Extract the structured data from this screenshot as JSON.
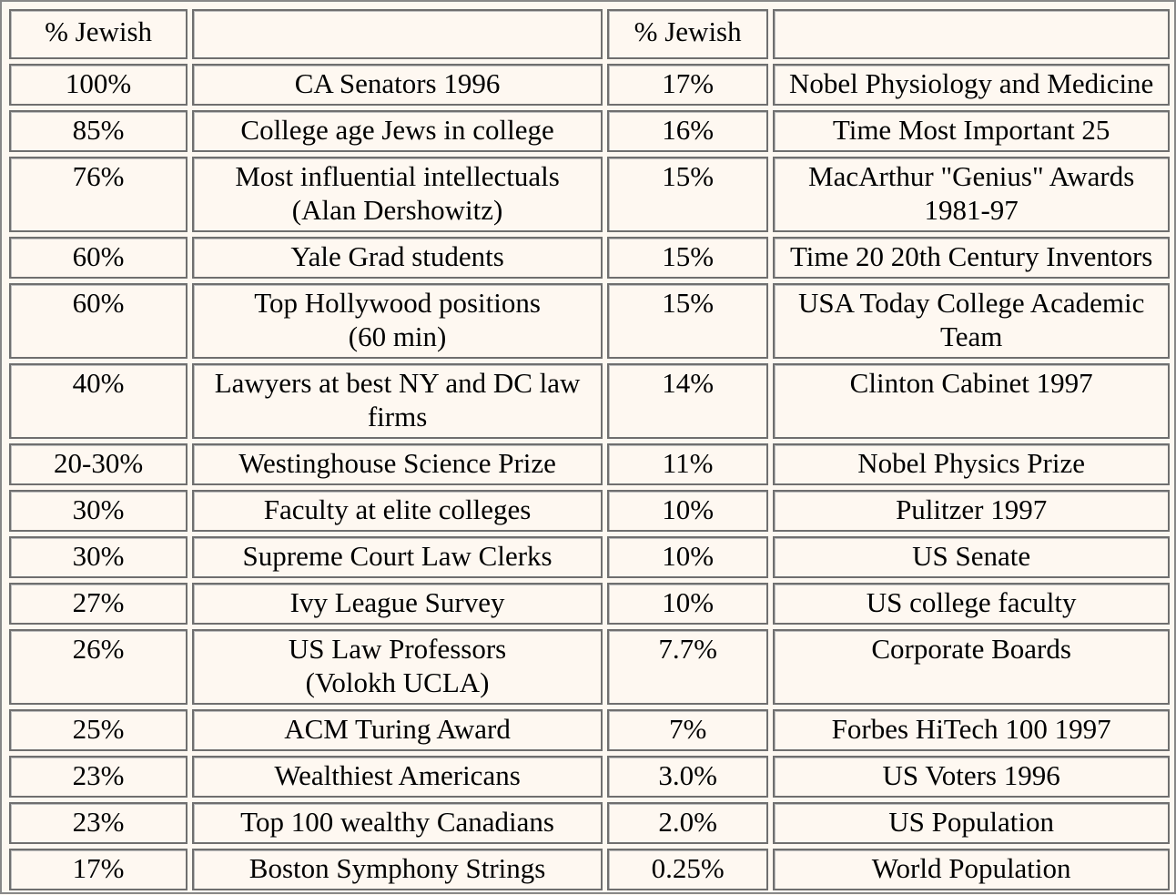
{
  "header": {
    "col1": "% Jewish",
    "col2": "",
    "col3": "% Jewish",
    "col4": ""
  },
  "rows": [
    {
      "lines": 1,
      "left_pct": "100%",
      "left_label": [
        "CA Senators 1996"
      ],
      "right_pct": "17%",
      "right_label": [
        "Nobel Physiology and Medicine"
      ]
    },
    {
      "lines": 1,
      "left_pct": "85%",
      "left_label": [
        "College age Jews in college"
      ],
      "right_pct": "16%",
      "right_label": [
        "Time Most Important 25"
      ]
    },
    {
      "lines": 2,
      "left_pct": "76%",
      "left_label": [
        "Most influential intellectuals",
        "(Alan Dershowitz)"
      ],
      "right_pct": "15%",
      "right_label": [
        "MacArthur \"Genius\" Awards",
        "1981-97"
      ]
    },
    {
      "lines": 1,
      "left_pct": "60%",
      "left_label": [
        "Yale Grad students"
      ],
      "right_pct": "15%",
      "right_label": [
        "Time 20 20th Century Inventors"
      ]
    },
    {
      "lines": 2,
      "left_pct": "60%",
      "left_label": [
        "Top Hollywood positions",
        "(60 min)"
      ],
      "right_pct": "15%",
      "right_label": [
        "USA Today College Academic",
        "Team"
      ]
    },
    {
      "lines": 2,
      "left_pct": "40%",
      "left_label": [
        "Lawyers at best NY and DC law",
        "firms"
      ],
      "right_pct": "14%",
      "right_label": [
        "Clinton Cabinet 1997"
      ]
    },
    {
      "lines": 1,
      "left_pct": "20-30%",
      "left_label": [
        "Westinghouse Science Prize"
      ],
      "right_pct": "11%",
      "right_label": [
        "Nobel Physics Prize"
      ]
    },
    {
      "lines": 1,
      "left_pct": "30%",
      "left_label": [
        "Faculty at elite colleges"
      ],
      "right_pct": "10%",
      "right_label": [
        "Pulitzer 1997"
      ]
    },
    {
      "lines": 1,
      "left_pct": "30%",
      "left_label": [
        "Supreme Court Law Clerks"
      ],
      "right_pct": "10%",
      "right_label": [
        "US Senate"
      ]
    },
    {
      "lines": 1,
      "left_pct": "27%",
      "left_label": [
        "Ivy League Survey"
      ],
      "right_pct": "10%",
      "right_label": [
        "US college faculty"
      ]
    },
    {
      "lines": 2,
      "left_pct": "26%",
      "left_label": [
        "US Law Professors",
        "(Volokh UCLA)"
      ],
      "right_pct": "7.7%",
      "right_label": [
        "Corporate Boards"
      ]
    },
    {
      "lines": 1,
      "left_pct": "25%",
      "left_label": [
        "ACM Turing Award"
      ],
      "right_pct": "7%",
      "right_label": [
        "Forbes HiTech 100 1997"
      ]
    },
    {
      "lines": 1,
      "left_pct": "23%",
      "left_label": [
        "Wealthiest Americans"
      ],
      "right_pct": "3.0%",
      "right_label": [
        "US Voters 1996"
      ]
    },
    {
      "lines": 1,
      "left_pct": "23%",
      "left_label": [
        "Top 100 wealthy Canadians"
      ],
      "right_pct": "2.0%",
      "right_label": [
        "US Population"
      ]
    },
    {
      "lines": 1,
      "left_pct": "17%",
      "left_label": [
        "Boston Symphony Strings"
      ],
      "right_pct": "0.25%",
      "right_label": [
        "World Population"
      ]
    }
  ]
}
